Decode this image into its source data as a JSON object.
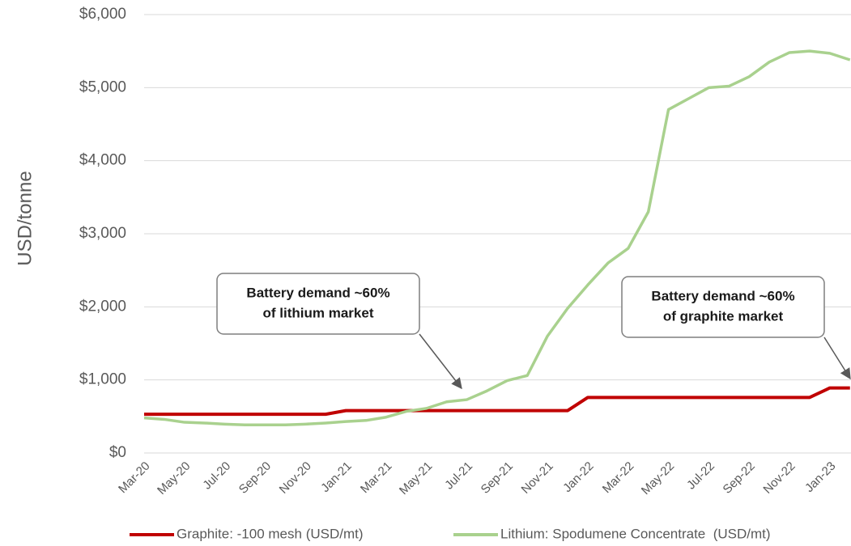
{
  "chart_data": {
    "type": "line",
    "ylabel": "USD/tonne",
    "categories": [
      "Mar-20",
      null,
      "May-20",
      null,
      "Jul-20",
      null,
      "Sep-20",
      null,
      "Nov-20",
      null,
      "Jan-21",
      null,
      "Mar-21",
      null,
      "May-21",
      null,
      "Jul-21",
      null,
      "Sep-21",
      null,
      "Nov-21",
      null,
      "Jan-22",
      null,
      "Mar-22",
      null,
      "May-22",
      null,
      "Jul-22",
      null,
      "Sep-22",
      null,
      "Nov-22",
      null,
      "Jan-23",
      null
    ],
    "series": [
      {
        "name": "Graphite: -100 mesh (USD/mt)",
        "color": "#c00000",
        "values": [
          530,
          530,
          530,
          530,
          530,
          530,
          530,
          530,
          530,
          530,
          580,
          580,
          580,
          580,
          580,
          580,
          580,
          580,
          580,
          580,
          580,
          580,
          760,
          760,
          760,
          760,
          760,
          760,
          760,
          760,
          760,
          760,
          760,
          760,
          890,
          890
        ]
      },
      {
        "name": "Lithium: Spodumene Concentrate  (USD/mt)",
        "color": "#a9d18e",
        "values": [
          480,
          460,
          420,
          410,
          395,
          385,
          385,
          385,
          395,
          410,
          430,
          445,
          490,
          570,
          610,
          700,
          730,
          850,
          990,
          1060,
          1600,
          1980,
          2300,
          2600,
          2800,
          3300,
          4700,
          4850,
          5000,
          5020,
          5150,
          5350,
          5480,
          5500,
          5470,
          5380
        ]
      }
    ],
    "ylim": [
      0,
      6000
    ],
    "yticks": [
      {
        "value": 0,
        "label": "$0"
      },
      {
        "value": 1000,
        "label": "$1,000"
      },
      {
        "value": 2000,
        "label": "$2,000"
      },
      {
        "value": 3000,
        "label": "$3,000"
      },
      {
        "value": 4000,
        "label": "$4,000"
      },
      {
        "value": 5000,
        "label": "$5,000"
      },
      {
        "value": 6000,
        "label": "$6,000"
      }
    ],
    "grid": true,
    "annotations": [
      {
        "lines": [
          "Battery demand ~60%",
          "of lithium market"
        ]
      },
      {
        "lines": [
          "Battery demand ~60%",
          "of graphite market"
        ]
      }
    ]
  }
}
